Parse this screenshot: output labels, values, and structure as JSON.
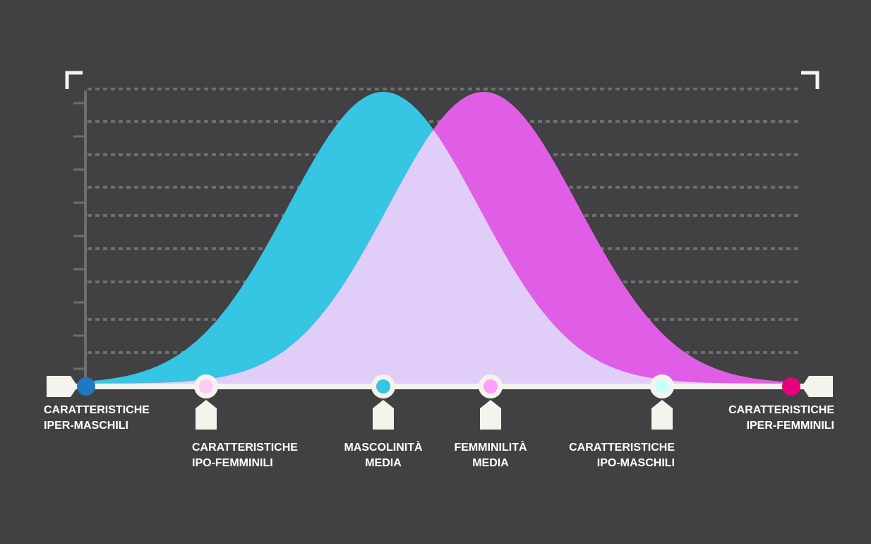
{
  "labels": [
    {
      "lines": [
        "CARATTERISTICHE",
        "IPER-MASCHILI"
      ]
    },
    {
      "lines": [
        "CARATTERISTICHE",
        "IPO-FEMMINILI"
      ]
    },
    {
      "lines": [
        "MASCOLINITÀ",
        "MEDIA"
      ]
    },
    {
      "lines": [
        "FEMMINILITÀ",
        "MEDIA"
      ]
    },
    {
      "lines": [
        "CARATTERISTICHE",
        "IPO-MASCHILI"
      ]
    },
    {
      "lines": [
        "CARATTERISTICHE",
        "IPER-FEMMINILI"
      ]
    }
  ]
}
